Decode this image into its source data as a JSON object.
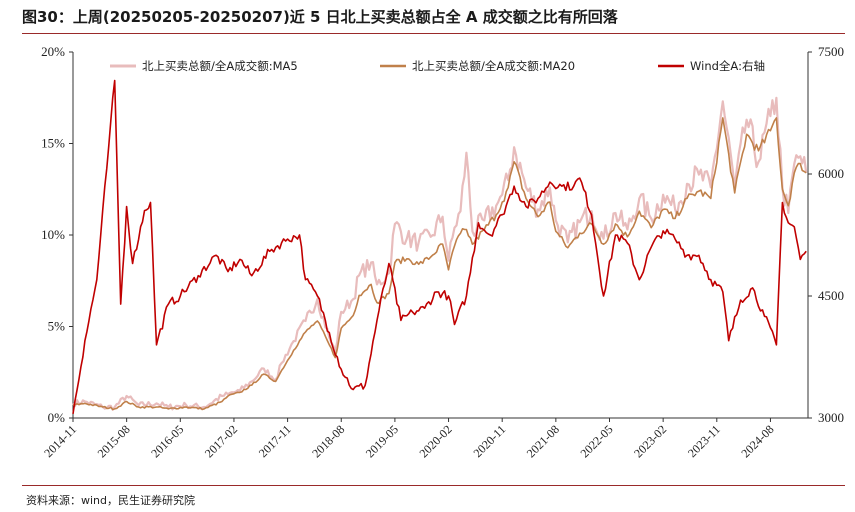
{
  "header": {
    "title": "图30：上周(20250205-20250207)近 5 日北上买卖总额占全 A 成交额之比有所回落"
  },
  "footer": {
    "source": "资料来源：wind，民生证券研究院"
  },
  "colors": {
    "ma5": "#e8bcbc",
    "ma20": "#c0804a",
    "wind": "#c00000",
    "rule": "#9a2a2a"
  },
  "chart_data": {
    "type": "line",
    "title": "",
    "x_tick_labels": [
      "2014-11",
      "2015-08",
      "2016-05",
      "2017-02",
      "2017-11",
      "2018-08",
      "2019-05",
      "2020-02",
      "2020-11",
      "2021-08",
      "2022-05",
      "2023-02",
      "2023-11",
      "2024-08"
    ],
    "y_left": {
      "min": 0,
      "max": 20,
      "unit": "%",
      "ticks": [
        "0%",
        "5%",
        "10%",
        "15%",
        "20%"
      ]
    },
    "y_right": {
      "min": 3000,
      "max": 7500,
      "ticks": [
        "3000",
        "4500",
        "6000",
        "7500"
      ]
    },
    "legend_placement": "top",
    "grid": false,
    "series": [
      {
        "name": "北上买卖总额/全A成交额:MA5",
        "axis": "left",
        "points": [
          [
            "2014-11",
            0.8
          ],
          [
            "2015-01",
            0.9
          ],
          [
            "2015-04",
            0.6
          ],
          [
            "2015-06",
            0.6
          ],
          [
            "2015-08",
            1.2
          ],
          [
            "2015-10",
            0.7
          ],
          [
            "2016-01",
            0.8
          ],
          [
            "2016-03",
            0.6
          ],
          [
            "2016-06",
            0.7
          ],
          [
            "2016-09",
            0.6
          ],
          [
            "2016-12",
            1.2
          ],
          [
            "2017-01",
            1.3
          ],
          [
            "2017-03",
            1.5
          ],
          [
            "2017-05",
            2.0
          ],
          [
            "2017-07",
            2.7
          ],
          [
            "2017-09",
            2.1
          ],
          [
            "2017-10",
            3.0
          ],
          [
            "2017-12",
            4.2
          ],
          [
            "2018-02",
            5.3
          ],
          [
            "2018-04",
            6.5
          ],
          [
            "2018-06",
            4.4
          ],
          [
            "2018-07",
            3.6
          ],
          [
            "2018-08",
            5.8
          ],
          [
            "2018-10",
            6.5
          ],
          [
            "2018-11",
            7.8
          ],
          [
            "2019-01",
            8.5
          ],
          [
            "2019-02",
            7.3
          ],
          [
            "2019-04",
            7.9
          ],
          [
            "2019-05",
            10.6
          ],
          [
            "2019-07",
            9.8
          ],
          [
            "2019-09",
            9.6
          ],
          [
            "2019-11",
            9.9
          ],
          [
            "2020-01",
            11.0
          ],
          [
            "2020-02",
            8.6
          ],
          [
            "2020-03",
            10.4
          ],
          [
            "2020-04",
            11.3
          ],
          [
            "2020-05",
            14.5
          ],
          [
            "2020-06",
            10.2
          ],
          [
            "2020-08",
            10.8
          ],
          [
            "2020-10",
            11.6
          ],
          [
            "2020-11",
            12.2
          ],
          [
            "2020-12",
            13.0
          ],
          [
            "2021-01",
            14.8
          ],
          [
            "2021-03",
            12.6
          ],
          [
            "2021-05",
            11.4
          ],
          [
            "2021-07",
            12.6
          ],
          [
            "2021-08",
            10.8
          ],
          [
            "2021-10",
            9.6
          ],
          [
            "2021-12",
            10.7
          ],
          [
            "2022-02",
            11.3
          ],
          [
            "2022-04",
            9.8
          ],
          [
            "2022-06",
            11.2
          ],
          [
            "2022-08",
            10.3
          ],
          [
            "2022-10",
            12.0
          ],
          [
            "2022-12",
            10.9
          ],
          [
            "2023-02",
            12.2
          ],
          [
            "2023-04",
            11.4
          ],
          [
            "2023-06",
            12.8
          ],
          [
            "2023-08",
            13.3
          ],
          [
            "2023-10",
            12.6
          ],
          [
            "2023-12",
            17.3
          ],
          [
            "2024-02",
            12.6
          ],
          [
            "2024-04",
            16.3
          ],
          [
            "2024-06",
            14.0
          ],
          [
            "2024-08",
            16.5
          ],
          [
            "2024-09",
            17.5
          ],
          [
            "2024-10",
            12.6
          ],
          [
            "2024-11",
            11.2
          ],
          [
            "2024-12",
            13.9
          ],
          [
            "2025-01",
            14.3
          ],
          [
            "2025-02",
            13.4
          ]
        ]
      },
      {
        "name": "北上买卖总额/全A成交额:MA20",
        "axis": "left",
        "points": [
          [
            "2014-11",
            0.7
          ],
          [
            "2015-01",
            0.8
          ],
          [
            "2015-04",
            0.6
          ],
          [
            "2015-06",
            0.5
          ],
          [
            "2015-08",
            0.9
          ],
          [
            "2015-10",
            0.6
          ],
          [
            "2016-01",
            0.6
          ],
          [
            "2016-03",
            0.5
          ],
          [
            "2016-06",
            0.6
          ],
          [
            "2016-09",
            0.5
          ],
          [
            "2016-12",
            0.9
          ],
          [
            "2017-01",
            1.2
          ],
          [
            "2017-03",
            1.4
          ],
          [
            "2017-05",
            1.8
          ],
          [
            "2017-07",
            2.4
          ],
          [
            "2017-09",
            2.0
          ],
          [
            "2017-10",
            2.6
          ],
          [
            "2017-12",
            3.7
          ],
          [
            "2018-02",
            4.7
          ],
          [
            "2018-04",
            5.3
          ],
          [
            "2018-06",
            4.0
          ],
          [
            "2018-07",
            3.3
          ],
          [
            "2018-08",
            4.9
          ],
          [
            "2018-10",
            5.6
          ],
          [
            "2018-11",
            6.7
          ],
          [
            "2019-01",
            7.3
          ],
          [
            "2019-02",
            6.3
          ],
          [
            "2019-04",
            6.8
          ],
          [
            "2019-05",
            8.5
          ],
          [
            "2019-07",
            8.7
          ],
          [
            "2019-09",
            8.4
          ],
          [
            "2019-11",
            8.8
          ],
          [
            "2020-01",
            9.5
          ],
          [
            "2020-02",
            8.1
          ],
          [
            "2020-03",
            9.4
          ],
          [
            "2020-04",
            10.1
          ],
          [
            "2020-05",
            10.3
          ],
          [
            "2020-06",
            9.5
          ],
          [
            "2020-08",
            10.3
          ],
          [
            "2020-10",
            11.1
          ],
          [
            "2020-11",
            11.8
          ],
          [
            "2020-12",
            12.6
          ],
          [
            "2021-01",
            14.0
          ],
          [
            "2021-03",
            12.0
          ],
          [
            "2021-05",
            11.0
          ],
          [
            "2021-07",
            11.8
          ],
          [
            "2021-08",
            10.2
          ],
          [
            "2021-10",
            9.3
          ],
          [
            "2021-12",
            10.1
          ],
          [
            "2022-02",
            10.6
          ],
          [
            "2022-04",
            9.5
          ],
          [
            "2022-06",
            10.6
          ],
          [
            "2022-08",
            9.9
          ],
          [
            "2022-10",
            11.3
          ],
          [
            "2022-12",
            10.4
          ],
          [
            "2023-02",
            11.4
          ],
          [
            "2023-04",
            10.9
          ],
          [
            "2023-06",
            12.0
          ],
          [
            "2023-08",
            12.4
          ],
          [
            "2023-10",
            12.0
          ],
          [
            "2023-12",
            16.4
          ],
          [
            "2024-02",
            12.3
          ],
          [
            "2024-04",
            15.5
          ],
          [
            "2024-06",
            14.6
          ],
          [
            "2024-08",
            15.7
          ],
          [
            "2024-09",
            16.4
          ],
          [
            "2024-10",
            12.5
          ],
          [
            "2024-11",
            11.6
          ],
          [
            "2024-12",
            13.4
          ],
          [
            "2025-01",
            13.9
          ],
          [
            "2025-02",
            13.4
          ]
        ]
      },
      {
        "name": "Wind全A:右轴",
        "axis": "right",
        "points": [
          [
            "2014-11",
            3050
          ],
          [
            "2015-01",
            3950
          ],
          [
            "2015-03",
            4700
          ],
          [
            "2015-05",
            6350
          ],
          [
            "2015-06",
            7150
          ],
          [
            "2015-07",
            4400
          ],
          [
            "2015-08",
            5600
          ],
          [
            "2015-09",
            4900
          ],
          [
            "2015-11",
            5550
          ],
          [
            "2015-12",
            5650
          ],
          [
            "2016-01",
            3900
          ],
          [
            "2016-03",
            4400
          ],
          [
            "2016-05",
            4500
          ],
          [
            "2016-08",
            4750
          ],
          [
            "2016-11",
            5000
          ],
          [
            "2017-01",
            4800
          ],
          [
            "2017-03",
            4950
          ],
          [
            "2017-05",
            4750
          ],
          [
            "2017-08",
            5050
          ],
          [
            "2017-11",
            5200
          ],
          [
            "2018-01",
            5250
          ],
          [
            "2018-02",
            4700
          ],
          [
            "2018-04",
            4500
          ],
          [
            "2018-06",
            4050
          ],
          [
            "2018-08",
            3600
          ],
          [
            "2018-10",
            3350
          ],
          [
            "2018-12",
            3400
          ],
          [
            "2019-02",
            4200
          ],
          [
            "2019-04",
            4900
          ],
          [
            "2019-06",
            4200
          ],
          [
            "2019-08",
            4300
          ],
          [
            "2019-10",
            4350
          ],
          [
            "2019-12",
            4550
          ],
          [
            "2020-02",
            4500
          ],
          [
            "2020-03",
            4150
          ],
          [
            "2020-05",
            4500
          ],
          [
            "2020-07",
            5400
          ],
          [
            "2020-09",
            5250
          ],
          [
            "2020-11",
            5500
          ],
          [
            "2021-01",
            5850
          ],
          [
            "2021-03",
            5600
          ],
          [
            "2021-05",
            5700
          ],
          [
            "2021-07",
            5900
          ],
          [
            "2021-09",
            5850
          ],
          [
            "2021-11",
            5850
          ],
          [
            "2021-12",
            5950
          ],
          [
            "2022-02",
            5500
          ],
          [
            "2022-04",
            4500
          ],
          [
            "2022-06",
            5250
          ],
          [
            "2022-08",
            5150
          ],
          [
            "2022-10",
            4700
          ],
          [
            "2022-12",
            5100
          ],
          [
            "2023-02",
            5300
          ],
          [
            "2023-04",
            5200
          ],
          [
            "2023-06",
            5000
          ],
          [
            "2023-08",
            5000
          ],
          [
            "2023-10",
            4700
          ],
          [
            "2023-12",
            4550
          ],
          [
            "2024-01",
            3950
          ],
          [
            "2024-03",
            4450
          ],
          [
            "2024-05",
            4600
          ],
          [
            "2024-07",
            4250
          ],
          [
            "2024-09",
            3900
          ],
          [
            "2024-10",
            5650
          ],
          [
            "2024-11",
            5400
          ],
          [
            "2024-12",
            5350
          ],
          [
            "2025-01",
            4950
          ],
          [
            "2025-02",
            5050
          ]
        ]
      }
    ]
  }
}
